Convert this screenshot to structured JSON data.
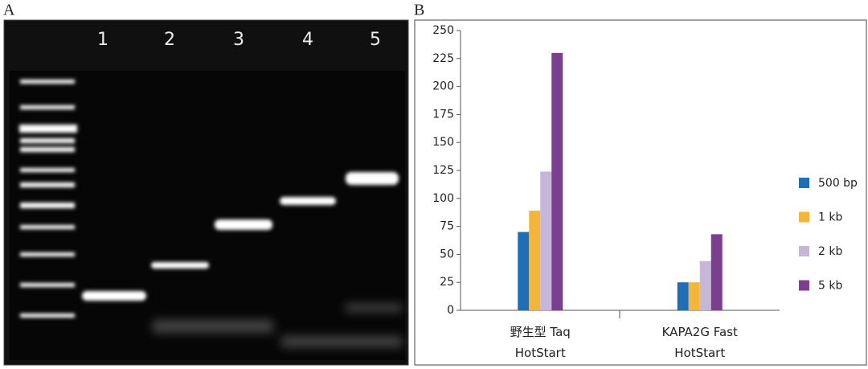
{
  "panel_labels": [
    "A",
    "B"
  ],
  "gel": {
    "lanes": [
      "1",
      "2",
      "3",
      "4",
      "5"
    ]
  },
  "chart_data": {
    "type": "bar",
    "categories": [
      "野生型 Taq HotStart",
      "KAPA2G Fast HotStart"
    ],
    "series": [
      {
        "name": "500 bp",
        "color": "#1f6fb5",
        "values": [
          70,
          25
        ]
      },
      {
        "name": "1 kb",
        "color": "#f4b63a",
        "values": [
          89,
          25
        ]
      },
      {
        "name": "2 kb",
        "color": "#c6b7d9",
        "values": [
          124,
          44
        ]
      },
      {
        "name": "5 kb",
        "color": "#7b3f8f",
        "values": [
          230,
          68
        ]
      }
    ],
    "ylim": [
      0,
      250
    ],
    "yticks": [
      0,
      25,
      50,
      75,
      100,
      125,
      150,
      175,
      200,
      225,
      250
    ],
    "grid": false,
    "legend": "right"
  }
}
